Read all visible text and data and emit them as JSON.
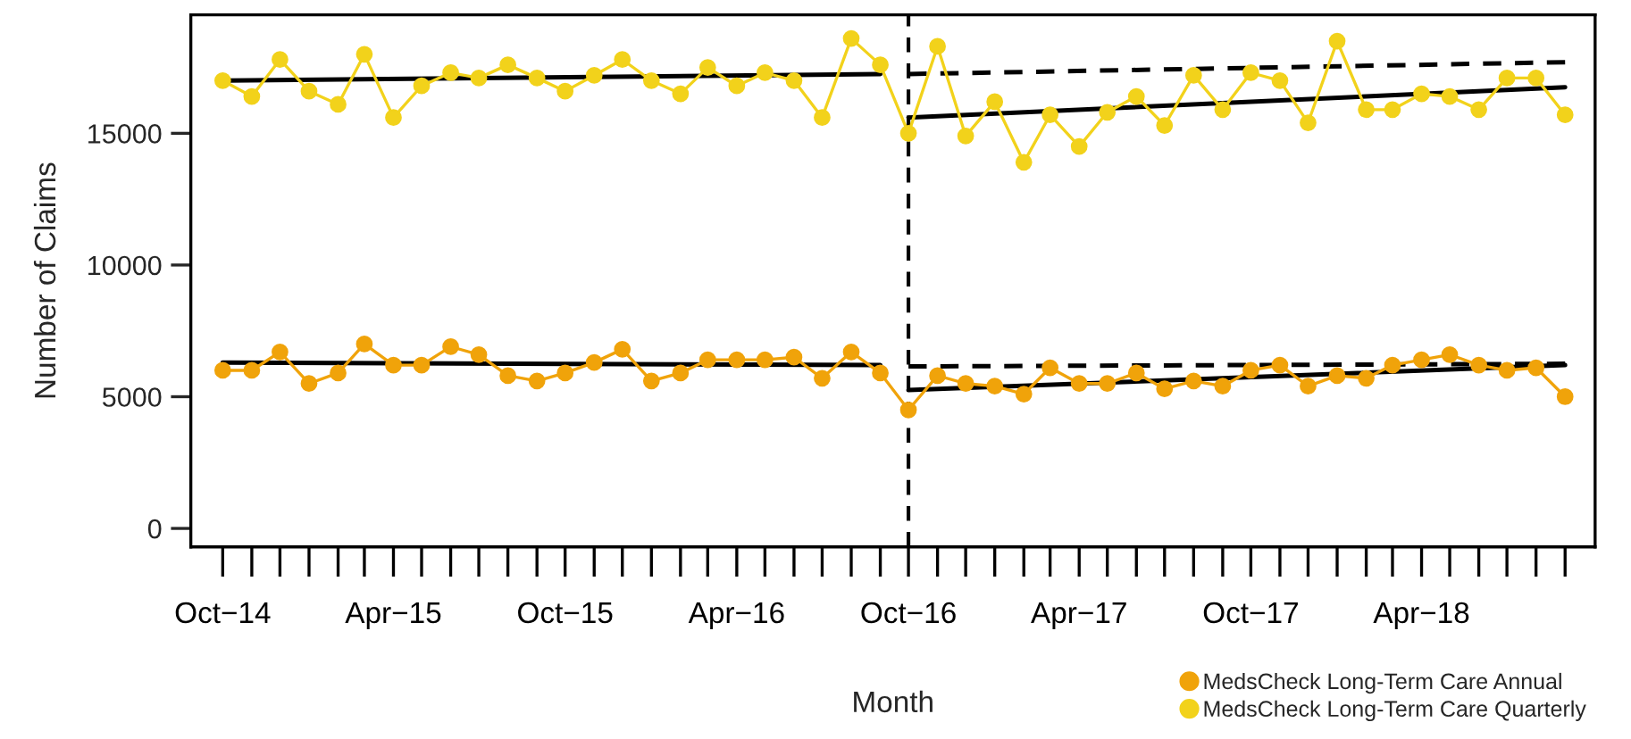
{
  "chart_data": {
    "type": "line",
    "xlabel": "Month",
    "ylabel": "Number of Claims",
    "x": [
      "2014-10",
      "2014-11",
      "2014-12",
      "2015-01",
      "2015-02",
      "2015-03",
      "2015-04",
      "2015-05",
      "2015-06",
      "2015-07",
      "2015-08",
      "2015-09",
      "2015-10",
      "2015-11",
      "2015-12",
      "2016-01",
      "2016-02",
      "2016-03",
      "2016-04",
      "2016-05",
      "2016-06",
      "2016-07",
      "2016-08",
      "2016-09",
      "2016-10",
      "2016-11",
      "2016-12",
      "2017-01",
      "2017-02",
      "2017-03",
      "2017-04",
      "2017-05",
      "2017-06",
      "2017-07",
      "2017-08",
      "2017-09",
      "2017-10",
      "2017-11",
      "2017-12",
      "2018-01",
      "2018-02",
      "2018-03",
      "2018-04",
      "2018-05",
      "2018-06",
      "2018-07",
      "2018-08",
      "2018-09"
    ],
    "series": [
      {
        "name": "MedsCheck Long-Term Care Annual",
        "color": "#f0a30a",
        "marker": "circle",
        "values": [
          6000,
          6000,
          6700,
          5500,
          5900,
          7000,
          6200,
          6200,
          6900,
          6600,
          5800,
          5600,
          5900,
          6300,
          6800,
          5600,
          5900,
          6400,
          6400,
          6400,
          6500,
          5700,
          6700,
          5900,
          4500,
          5800,
          5500,
          5400,
          5100,
          6100,
          5500,
          5500,
          5900,
          5300,
          5600,
          5400,
          6000,
          6200,
          5400,
          5800,
          5700,
          6200,
          6400,
          6600,
          6200,
          6000,
          6100,
          5000
        ]
      },
      {
        "name": "MedsCheck Long-Term Care Quarterly",
        "color": "#f2d21b",
        "marker": "circle",
        "values": [
          17000,
          16400,
          17800,
          16600,
          16100,
          18000,
          15600,
          16800,
          17300,
          17100,
          17600,
          17100,
          16600,
          17200,
          17800,
          17000,
          16500,
          17500,
          16800,
          17300,
          17000,
          15600,
          18600,
          17600,
          15000,
          18300,
          14900,
          16200,
          13900,
          15700,
          14500,
          15800,
          16400,
          15300,
          17200,
          15900,
          17300,
          17000,
          15400,
          18500,
          15900,
          15900,
          16500,
          16400,
          15900,
          17100,
          17100,
          15700
        ]
      },
      {
        "type": "line",
        "color": "#000000",
        "line_style": "solid",
        "x": [
          "2014-10",
          "2016-09"
        ],
        "values": [
          6300,
          6200
        ]
      },
      {
        "type": "line",
        "color": "#000000",
        "line_style": "solid",
        "x": [
          "2016-10",
          "2018-09"
        ],
        "values": [
          5250,
          6200
        ]
      },
      {
        "type": "line",
        "color": "#000000",
        "line_style": "dashed",
        "x": [
          "2016-10",
          "2018-09"
        ],
        "values": [
          6150,
          6250
        ]
      },
      {
        "type": "line",
        "color": "#000000",
        "line_style": "solid",
        "x": [
          "2014-10",
          "2016-09"
        ],
        "values": [
          17000,
          17250
        ]
      },
      {
        "type": "line",
        "color": "#000000",
        "line_style": "solid",
        "x": [
          "2016-10",
          "2018-09"
        ],
        "values": [
          15600,
          16750
        ]
      },
      {
        "type": "line",
        "color": "#000000",
        "line_style": "dashed",
        "x": [
          "2016-10",
          "2018-09"
        ],
        "values": [
          17250,
          17700
        ]
      }
    ],
    "ref_lines": [
      {
        "axis": "x",
        "value": "2016-10",
        "color": "#000000",
        "line_style": "dashed"
      }
    ],
    "xlim": [
      "2014-08-28",
      "2018-10-03"
    ],
    "xticks": [
      {
        "value": "2014-10",
        "label": "Oct−14"
      },
      {
        "value": "2015-04",
        "label": "Apr−15"
      },
      {
        "value": "2015-10",
        "label": "Oct−15"
      },
      {
        "value": "2016-04",
        "label": "Apr−16"
      },
      {
        "value": "2016-10",
        "label": "Oct−16"
      },
      {
        "value": "2017-04",
        "label": "Apr−17"
      },
      {
        "value": "2017-10",
        "label": "Oct−17"
      },
      {
        "value": "2018-04",
        "label": "Apr−18"
      }
    ],
    "ylim": [
      -700,
      19500
    ],
    "yticks": [
      0,
      5000,
      10000,
      15000
    ],
    "grid": false,
    "legend": "bottom right"
  }
}
